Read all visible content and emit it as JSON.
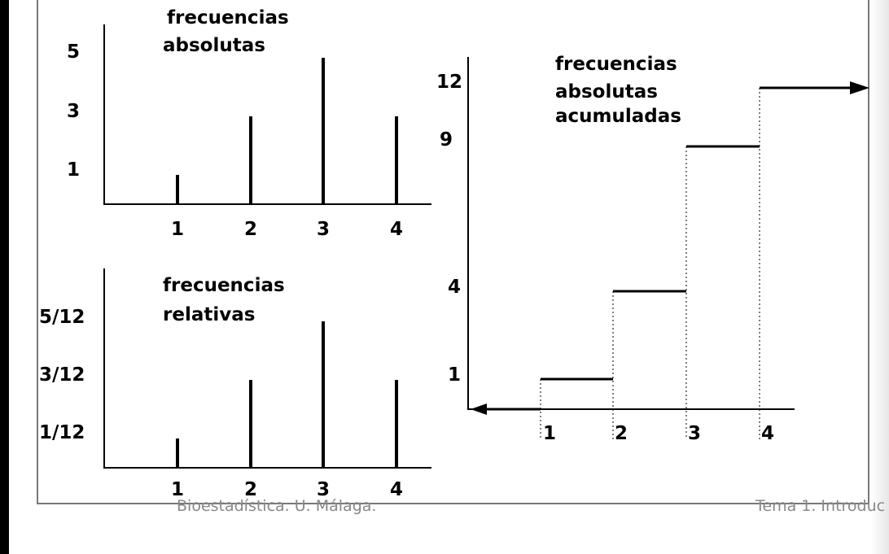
{
  "chart_data": [
    {
      "type": "bar",
      "title": "frecuencias absolutas",
      "categories": [
        "1",
        "2",
        "3",
        "4"
      ],
      "values": [
        1,
        3,
        5,
        3
      ],
      "yticks": [
        "1",
        "3",
        "5"
      ],
      "ylim": [
        0,
        6
      ]
    },
    {
      "type": "bar",
      "title": "frecuencias relativas",
      "categories": [
        "1",
        "2",
        "3",
        "4"
      ],
      "values": [
        0.0833,
        0.25,
        0.4167,
        0.25
      ],
      "yticks": [
        "1/12",
        "3/12",
        "5/12"
      ]
    },
    {
      "type": "line",
      "subtype": "step",
      "title": "frecuencias absolutas acumuladas",
      "categories": [
        "1",
        "2",
        "3",
        "4"
      ],
      "values": [
        1,
        4,
        9,
        12
      ],
      "yticks": [
        "1",
        "4",
        "9",
        "12"
      ]
    }
  ],
  "footer": {
    "left": "Bioestadística. U. Málaga.",
    "right": "Tema 1. Introduc"
  }
}
